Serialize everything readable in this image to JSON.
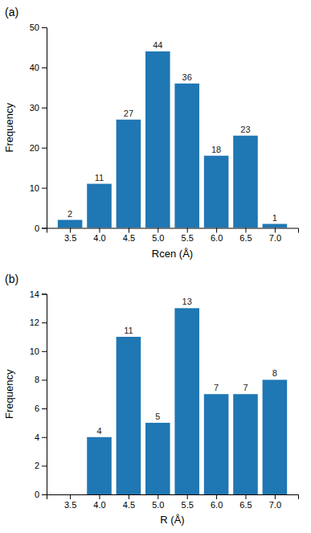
{
  "chart_data": [
    {
      "type": "bar",
      "title": "(a)",
      "x": [
        3.5,
        4.0,
        4.5,
        5.0,
        5.5,
        6.0,
        6.5,
        7.0
      ],
      "values": [
        2,
        11,
        27,
        44,
        36,
        18,
        23,
        1
      ],
      "xlabel": "Rcen (Å)",
      "ylabel": "Frequency",
      "xlim": [
        3.1,
        7.4
      ],
      "xticks": [
        3.5,
        {
          "value": 4.0,
          "label": "4.0"
        },
        4.5,
        {
          "value": 5.0,
          "label": "5.0"
        },
        5.5,
        {
          "value": 6.0,
          "label": "6.0"
        },
        6.5,
        {
          "value": 7.0,
          "label": "7.0"
        }
      ],
      "ylim": [
        0,
        50
      ],
      "yticks": [
        0,
        10,
        20,
        30,
        40,
        50
      ],
      "data_labels": true
    },
    {
      "type": "bar",
      "title": "(b)",
      "x": [
        3.5,
        4.0,
        4.5,
        5.0,
        5.5,
        6.0,
        6.5,
        7.0
      ],
      "values": [
        0,
        4,
        11,
        5,
        13,
        7,
        7,
        8
      ],
      "value_labels": [
        null,
        "4",
        "11",
        "5",
        "13",
        "7",
        "7",
        "8"
      ],
      "xlabel": "R (Å)",
      "ylabel": "Frequency",
      "xlim": [
        3.1,
        7.4
      ],
      "xticks": [
        3.5,
        {
          "value": 4.0,
          "label": "4.0"
        },
        4.5,
        {
          "value": 5.0,
          "label": "5.0"
        },
        5.5,
        {
          "value": 6.0,
          "label": "6.0"
        },
        6.5,
        {
          "value": 7.0,
          "label": "7.0"
        }
      ],
      "ylim": [
        0,
        14
      ],
      "yticks": [
        0,
        2,
        4,
        6,
        8,
        10,
        12,
        14
      ],
      "data_labels": true
    }
  ]
}
